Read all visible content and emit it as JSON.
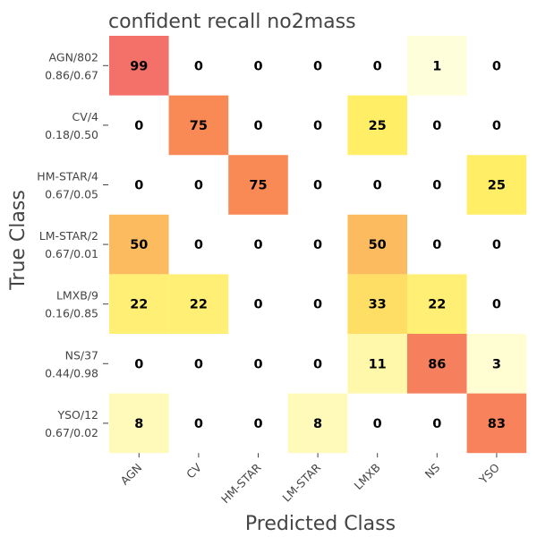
{
  "chart_data": {
    "type": "heatmap",
    "title": "confident recall no2mass",
    "xlabel": "Predicted Class",
    "ylabel": "True Class",
    "columns": [
      "AGN",
      "CV",
      "HM-STAR",
      "LM-STAR",
      "LMXB",
      "NS",
      "YSO"
    ],
    "rows": [
      {
        "name": "AGN/802",
        "stats": "0.86/0.67"
      },
      {
        "name": "CV/4",
        "stats": "0.18/0.50"
      },
      {
        "name": "HM-STAR/4",
        "stats": "0.67/0.05"
      },
      {
        "name": "LM-STAR/2",
        "stats": "0.67/0.01"
      },
      {
        "name": "LMXB/9",
        "stats": "0.16/0.85"
      },
      {
        "name": "NS/37",
        "stats": "0.44/0.98"
      },
      {
        "name": "YSO/12",
        "stats": "0.67/0.02"
      }
    ],
    "values": [
      [
        99,
        0,
        0,
        0,
        0,
        1,
        0
      ],
      [
        0,
        75,
        0,
        0,
        25,
        0,
        0
      ],
      [
        0,
        0,
        75,
        0,
        0,
        0,
        25
      ],
      [
        50,
        0,
        0,
        0,
        50,
        0,
        0
      ],
      [
        22,
        22,
        0,
        0,
        33,
        22,
        0
      ],
      [
        0,
        0,
        0,
        0,
        11,
        86,
        3
      ],
      [
        8,
        0,
        0,
        8,
        0,
        0,
        83
      ]
    ],
    "vmin": 0,
    "vmax": 100,
    "colormap": [
      "#ffffe0",
      "#ffee66",
      "#fdbb60",
      "#f98a55",
      "#f3706a"
    ]
  }
}
